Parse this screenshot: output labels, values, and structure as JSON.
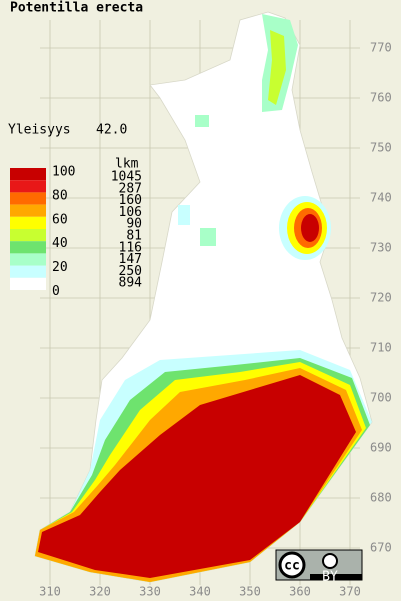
{
  "title": "Potentilla erecta",
  "frequency": {
    "label": "Yleisyys",
    "value": "42.0"
  },
  "legend": {
    "scale": [
      100,
      80,
      60,
      40,
      20,
      0
    ],
    "colors": [
      "#c80000",
      "#e81818",
      "#ff6a00",
      "#ffa800",
      "#ffff00",
      "#c8ff30",
      "#6ee36e",
      "#a8ffc8",
      "#c8ffff",
      "#ffffff"
    ],
    "count_header": "lkm",
    "counts": [
      1045,
      287,
      160,
      106,
      90,
      81,
      116,
      147,
      250,
      894
    ]
  },
  "grid": {
    "north": [
      770,
      760,
      750,
      740,
      730,
      720,
      710,
      700,
      690,
      680,
      670
    ],
    "east": [
      310,
      320,
      330,
      340,
      350,
      360,
      370
    ]
  },
  "license": {
    "icon": "cc",
    "text": "BY"
  }
}
